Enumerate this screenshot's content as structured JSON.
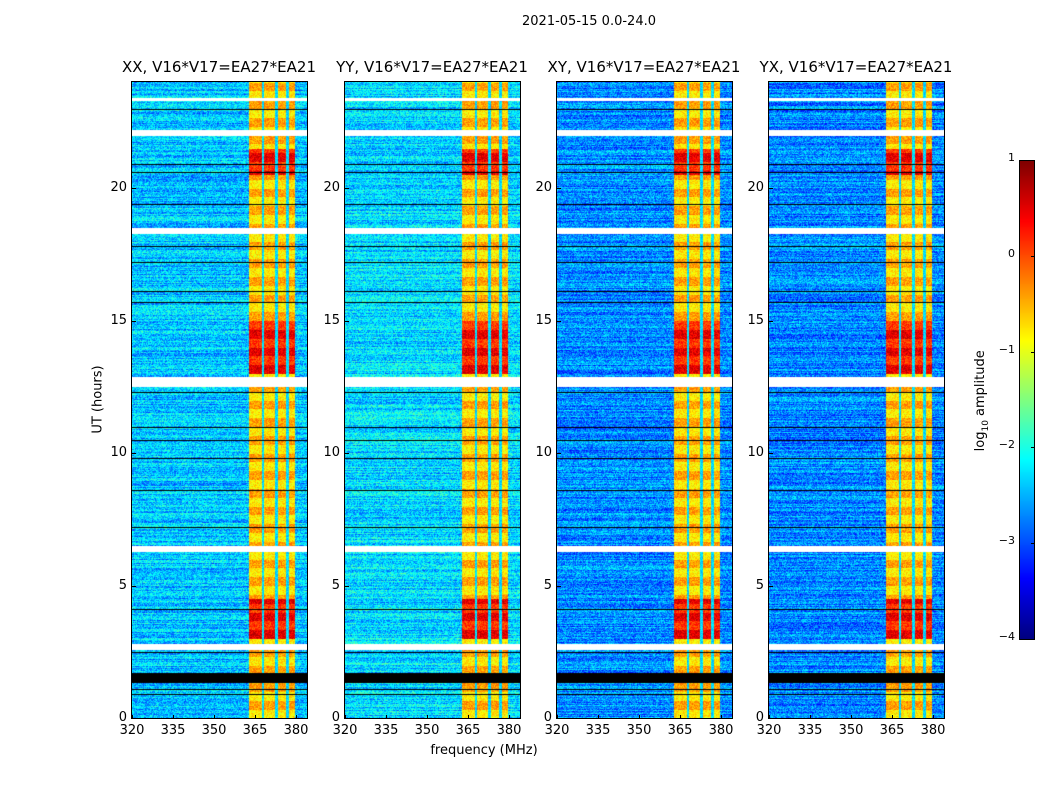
{
  "suptitle": "2021-05-15 0.0-24.0",
  "chart_data": {
    "type": "heatmap",
    "title": "2021-05-15 0.0-24.0",
    "xlabel": "frequency (MHz)",
    "ylabel": "UT (hours)",
    "xlim": [
      320,
      384
    ],
    "ylim": [
      0,
      24
    ],
    "xticks": [
      320,
      335,
      350,
      365,
      380
    ],
    "yticks": [
      0,
      5,
      10,
      15,
      20
    ],
    "panels": [
      {
        "title": "XX, V16*V17=EA27*EA21",
        "base_level": -2.4
      },
      {
        "title": "YY, V16*V17=EA27*EA21",
        "base_level": -2.3
      },
      {
        "title": "XY, V16*V17=EA27*EA21",
        "base_level": -2.7
      },
      {
        "title": "YX, V16*V17=EA27*EA21",
        "base_level": -2.7
      }
    ],
    "colorbar": {
      "label_main": "log",
      "label_sub": "10",
      "label_rest": " amplitude",
      "colormap": "jet",
      "range": [
        -4,
        1
      ],
      "ticks": [
        1,
        0,
        -1,
        -2,
        -3,
        -4
      ],
      "tick_labels": [
        "1",
        "0",
        "−1",
        "−2",
        "−3",
        "−4"
      ]
    },
    "features": {
      "rfi_band_mhz": [
        362.5,
        379.5
      ],
      "rfi_band_level": -0.6,
      "gap_channels_mhz": [
        367.7,
        372.7,
        376.8
      ],
      "bright_periods_ut": [
        [
          3.0,
          4.5
        ],
        [
          13.0,
          15.0
        ],
        [
          20.5,
          21.5
        ]
      ],
      "blank_black_ut": [
        [
          1.35,
          1.7
        ]
      ],
      "flagged_white_ut": [
        [
          2.6,
          2.8
        ],
        [
          6.3,
          6.5
        ],
        [
          12.5,
          12.9
        ],
        [
          18.3,
          18.5
        ],
        [
          22.0,
          22.2
        ],
        [
          23.3,
          23.4
        ]
      ],
      "black_lines_ut": [
        0.9,
        1.1,
        2.5,
        4.1,
        7.2,
        8.6,
        9.8,
        10.5,
        11.0,
        12.3,
        15.7,
        16.1,
        17.2,
        17.8,
        19.4,
        20.6,
        20.9,
        23.0
      ]
    }
  }
}
